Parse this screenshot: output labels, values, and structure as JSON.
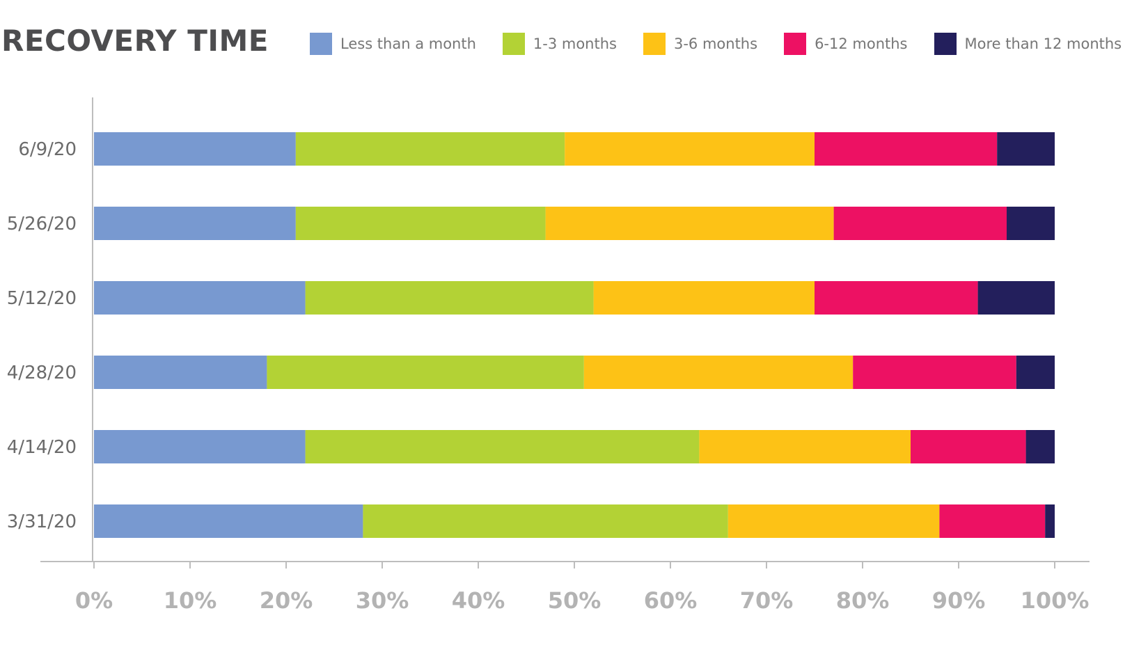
{
  "chart_data": {
    "type": "bar",
    "orientation": "horizontal",
    "stacked": true,
    "title": "RECOVERY TIME",
    "xlabel": "",
    "ylabel": "",
    "xlim": [
      0,
      100
    ],
    "grid": false,
    "legend_position": "top",
    "categories": [
      "6/9/20",
      "5/26/20",
      "5/12/20",
      "4/28/20",
      "4/14/20",
      "3/31/20"
    ],
    "x_ticks": [
      "0%",
      "10%",
      "20%",
      "30%",
      "40%",
      "50%",
      "60%",
      "70%",
      "80%",
      "90%",
      "100%"
    ],
    "series": [
      {
        "name": "Less than a month",
        "color": "#7899d0",
        "values": [
          21,
          21,
          22,
          18,
          22,
          28
        ]
      },
      {
        "name": "1-3 months",
        "color": "#b3d235",
        "values": [
          28,
          26,
          30,
          33,
          41,
          38
        ]
      },
      {
        "name": "3-6 months",
        "color": "#fdc216",
        "values": [
          26,
          30,
          23,
          28,
          22,
          22
        ]
      },
      {
        "name": "6-12 months",
        "color": "#ed1163",
        "values": [
          19,
          18,
          17,
          17,
          12,
          11
        ]
      },
      {
        "name": "More than 12 months",
        "color": "#231f5c",
        "values": [
          6,
          5,
          8,
          4,
          3,
          1
        ]
      }
    ]
  }
}
